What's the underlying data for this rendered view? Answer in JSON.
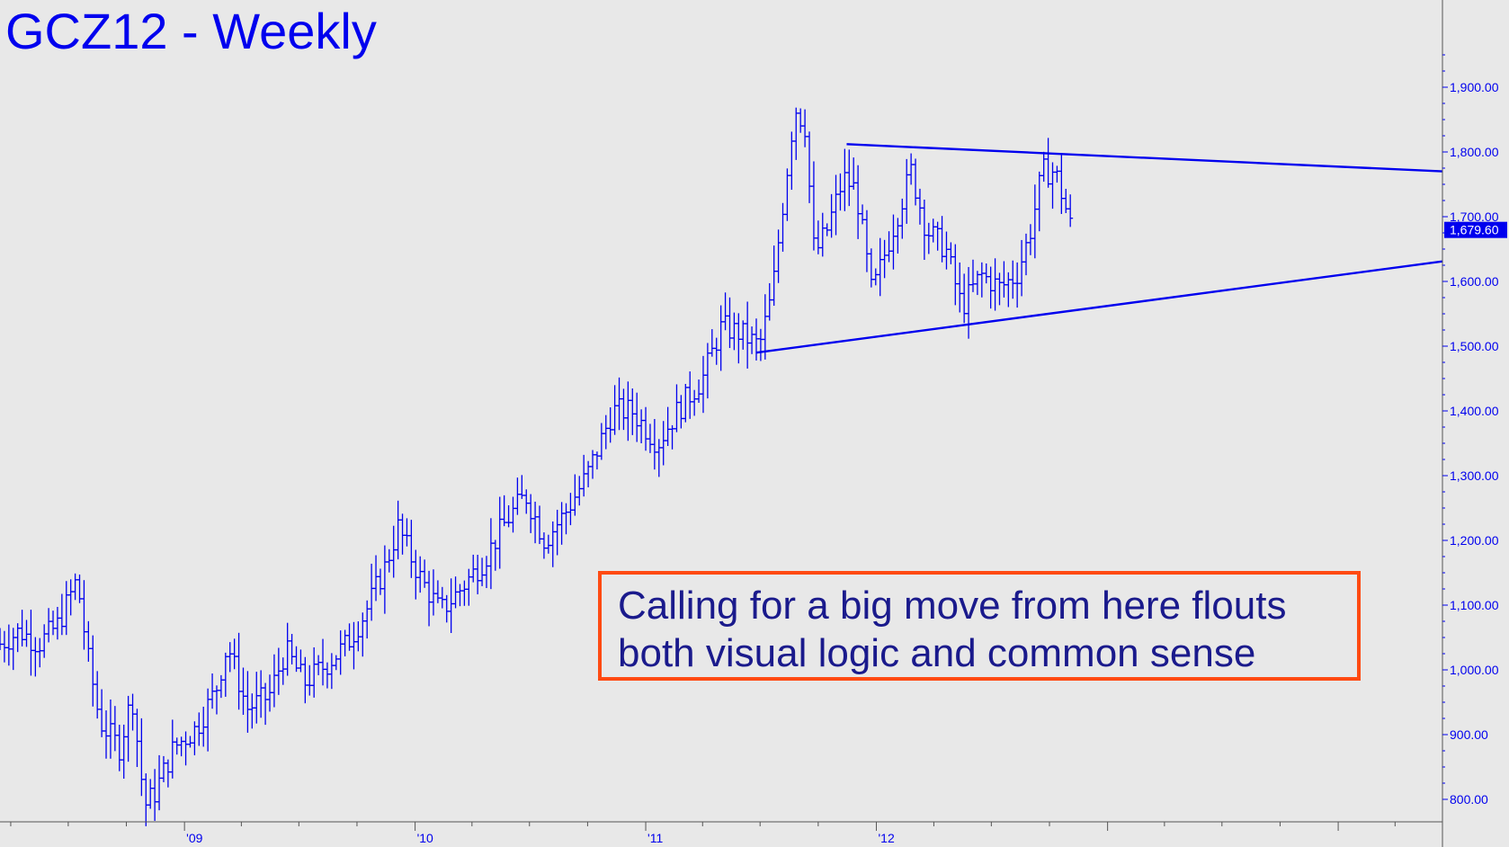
{
  "title": "GCZ12 - Weekly",
  "callout": {
    "line1": "Calling for a big move from here flouts",
    "line2": "both visual logic and common sense"
  },
  "colors": {
    "background": "#e8e8e8",
    "series": "#0000ee",
    "callout_border": "#ff4a12",
    "callout_text": "#1a1a8c",
    "last_price_bg": "#0000ee"
  },
  "chart_data": {
    "type": "ohlc",
    "title": "GCZ12 - Weekly",
    "xlabel": "",
    "ylabel": "",
    "ylim": [
      760,
      1990
    ],
    "yticks": [
      800,
      900,
      1000,
      1100,
      1200,
      1300,
      1400,
      1500,
      1600,
      1700,
      1800,
      1900
    ],
    "ytick_labels": [
      "800.00",
      "900.00",
      "1,000.00",
      "1,100.00",
      "1,200.00",
      "1,300.00",
      "1,400.00",
      "1,500.00",
      "1,600.00",
      "1,700.00",
      "1,800.00",
      "1,900.00"
    ],
    "xtick_labels": [
      "'09",
      "'10",
      "'11",
      "'12"
    ],
    "xticks": [
      "2009-01-01",
      "2010-01-01",
      "2011-01-01",
      "2012-01-01"
    ],
    "x_range": [
      "2008-03-15",
      "2014-06-15"
    ],
    "last_price": 1679.6,
    "last_price_label": "1,679.60",
    "grid": false,
    "price_path": [
      [
        "2008-03-15",
        1040
      ],
      [
        "2008-04-15",
        1060
      ],
      [
        "2008-05-15",
        1040
      ],
      [
        "2008-06-15",
        1070
      ],
      [
        "2008-07-15",
        1140
      ],
      [
        "2008-08-01",
        1020
      ],
      [
        "2008-08-20",
        920
      ],
      [
        "2008-09-20",
        880
      ],
      [
        "2008-10-10",
        960
      ],
      [
        "2008-10-30",
        790
      ],
      [
        "2008-11-15",
        810
      ],
      [
        "2008-12-15",
        880
      ],
      [
        "2009-01-20",
        910
      ],
      [
        "2009-02-20",
        970
      ],
      [
        "2009-03-10",
        1040
      ],
      [
        "2009-04-10",
        940
      ],
      [
        "2009-05-15",
        960
      ],
      [
        "2009-06-10",
        1030
      ],
      [
        "2009-07-10",
        980
      ],
      [
        "2009-08-15",
        1010
      ],
      [
        "2009-09-15",
        1040
      ],
      [
        "2009-10-15",
        1090
      ],
      [
        "2009-11-15",
        1160
      ],
      [
        "2009-12-05",
        1220
      ],
      [
        "2010-01-10",
        1140
      ],
      [
        "2010-02-10",
        1090
      ],
      [
        "2010-03-10",
        1120
      ],
      [
        "2010-04-20",
        1170
      ],
      [
        "2010-05-25",
        1230
      ],
      [
        "2010-06-25",
        1270
      ],
      [
        "2010-07-25",
        1200
      ],
      [
        "2010-08-25",
        1240
      ],
      [
        "2010-09-30",
        1300
      ],
      [
        "2010-11-10",
        1400
      ],
      [
        "2010-12-10",
        1400
      ],
      [
        "2011-01-20",
        1350
      ],
      [
        "2011-02-20",
        1400
      ],
      [
        "2011-04-01",
        1450
      ],
      [
        "2011-05-01",
        1530
      ],
      [
        "2011-05-30",
        1520
      ],
      [
        "2011-06-30",
        1500
      ],
      [
        "2011-07-20",
        1580
      ],
      [
        "2011-08-10",
        1750
      ],
      [
        "2011-08-25",
        1870
      ],
      [
        "2011-09-10",
        1840
      ],
      [
        "2011-09-25",
        1640
      ],
      [
        "2011-10-15",
        1680
      ],
      [
        "2011-11-10",
        1760
      ],
      [
        "2011-11-30",
        1740
      ],
      [
        "2011-12-25",
        1580
      ],
      [
        "2012-01-20",
        1660
      ],
      [
        "2012-02-25",
        1770
      ],
      [
        "2012-03-20",
        1680
      ],
      [
        "2012-04-20",
        1650
      ],
      [
        "2012-05-15",
        1560
      ],
      [
        "2012-06-15",
        1610
      ],
      [
        "2012-07-15",
        1590
      ],
      [
        "2012-08-10",
        1610
      ],
      [
        "2012-08-30",
        1670
      ],
      [
        "2012-09-20",
        1770
      ],
      [
        "2012-10-10",
        1770
      ],
      [
        "2012-10-25",
        1720
      ],
      [
        "2012-11-05",
        1679.6
      ]
    ],
    "trendlines": [
      {
        "from": [
          "2011-11-15",
          1812
        ],
        "to": [
          "2014-06-15",
          1770
        ]
      },
      {
        "from": [
          "2011-06-25",
          1490
        ],
        "to": [
          "2014-06-15",
          1631
        ]
      }
    ]
  }
}
